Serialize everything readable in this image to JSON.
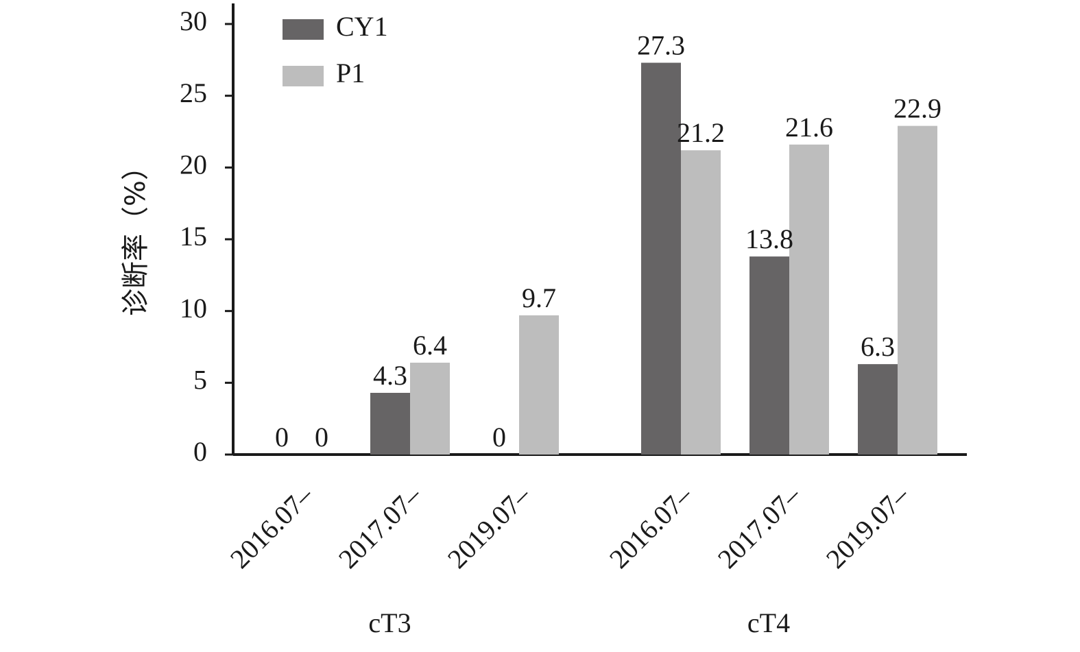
{
  "chart_data": {
    "type": "bar",
    "ylabel": "诊断率（%）",
    "ylim": [
      0,
      30
    ],
    "yticks": [
      0,
      5,
      10,
      15,
      20,
      25,
      30
    ],
    "categories": [
      "2016.07–",
      "2017.07–",
      "2019.07–",
      "2016.07–",
      "2017.07–",
      "2019.07–"
    ],
    "groups": [
      {
        "label": "cT3",
        "categories": [
          0,
          1,
          2
        ]
      },
      {
        "label": "cT4",
        "categories": [
          3,
          4,
          5
        ]
      }
    ],
    "series": [
      {
        "name": "CY1",
        "color": "#666465",
        "values": [
          0,
          4.3,
          0,
          27.3,
          13.8,
          6.3
        ],
        "labels": [
          "0",
          "4.3",
          "0",
          "27.3",
          "13.8",
          "6.3"
        ]
      },
      {
        "name": "P1",
        "color": "#bdbdbd",
        "values": [
          0,
          6.4,
          9.7,
          21.2,
          21.6,
          22.9
        ],
        "labels": [
          "0",
          "6.4",
          "9.7",
          "21.2",
          "21.6",
          "22.9"
        ]
      }
    ],
    "legend_position": "top-left",
    "grid": false
  }
}
